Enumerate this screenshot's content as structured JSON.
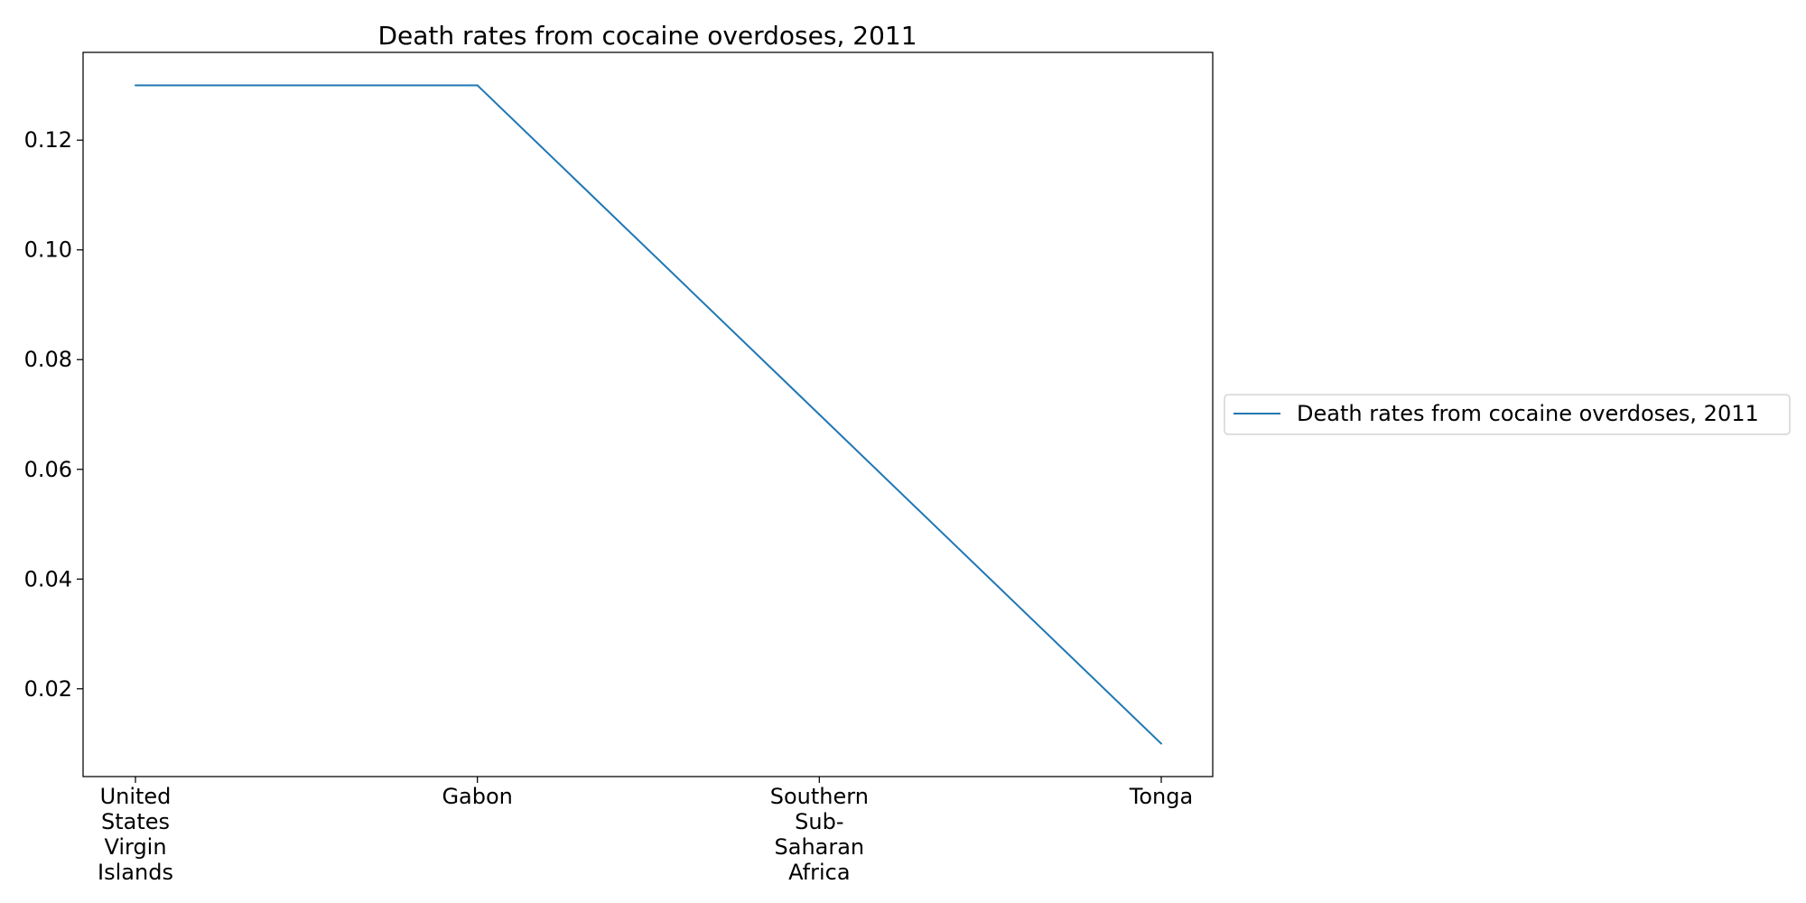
{
  "chart_data": {
    "type": "line",
    "title": "Death rates from cocaine overdoses, 2011",
    "xlabel": "",
    "ylabel": "",
    "categories": [
      "United States Virgin Islands",
      "Gabon",
      "Southern Sub-Saharan Africa",
      "Tonga"
    ],
    "category_lines": [
      [
        "United",
        "States",
        "Virgin",
        "Islands"
      ],
      [
        "Gabon"
      ],
      [
        "Southern",
        "Sub-",
        "Saharan",
        "Africa"
      ],
      [
        "Tonga"
      ]
    ],
    "series": [
      {
        "name": "Death rates from cocaine overdoses, 2011",
        "values": [
          0.13,
          0.13,
          0.07,
          0.01
        ],
        "color": "#1f77b4"
      }
    ],
    "ylim": [
      0.004,
      0.136
    ],
    "yticks": [
      0.02,
      0.04,
      0.06,
      0.08,
      0.1,
      0.12
    ],
    "ytick_labels": [
      "0.02",
      "0.04",
      "0.06",
      "0.08",
      "0.10",
      "0.12"
    ],
    "grid": false,
    "legend": {
      "placement": "right-outside",
      "entries": [
        "Death rates from cocaine overdoses, 2011"
      ]
    }
  }
}
